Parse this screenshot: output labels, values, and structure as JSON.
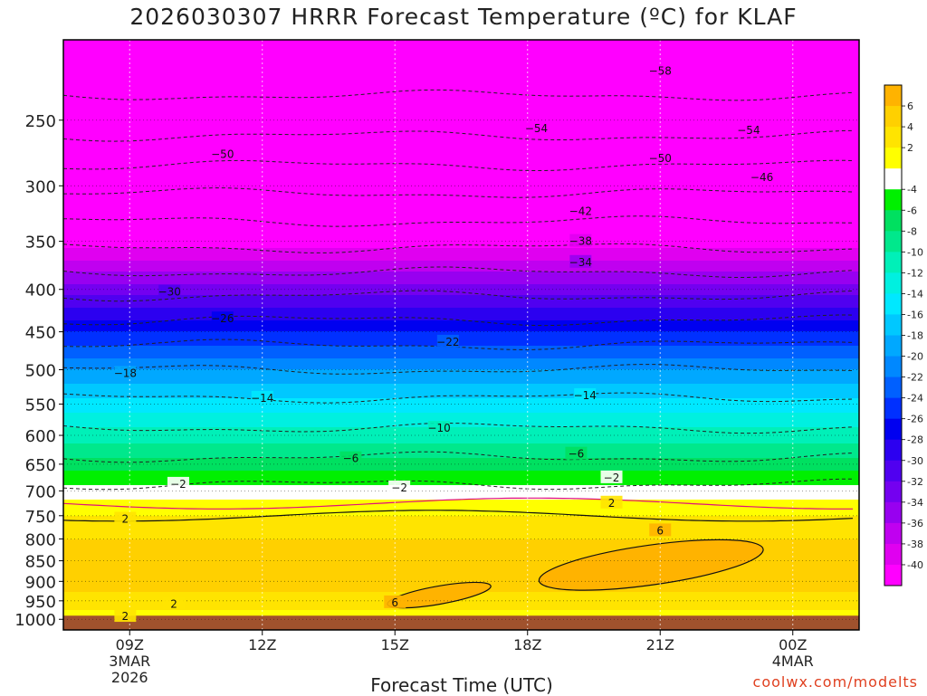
{
  "title": "2026030307 HRRR Forecast Temperature (ºC) for KLAF",
  "xlabel": "Forecast Time (UTC)",
  "credit": "coolwx.com/modelts",
  "chart_data": {
    "type": "heatmap",
    "title": "2026030307 HRRR Forecast Temperature (ºC) for KLAF",
    "xlabel": "Forecast Time (UTC)",
    "ylabel": "",
    "x_range_hours_utc": [
      7.5,
      25.5
    ],
    "y_range_hPa": [
      1030,
      200
    ],
    "y_scale": "log-pressure",
    "yticks": [
      250,
      300,
      350,
      400,
      450,
      500,
      550,
      600,
      650,
      700,
      750,
      800,
      850,
      900,
      950,
      1000
    ],
    "xticks": [
      {
        "hour": 9,
        "lines": [
          "09Z",
          "3MAR",
          "2026"
        ]
      },
      {
        "hour": 12,
        "lines": [
          "12Z"
        ]
      },
      {
        "hour": 15,
        "lines": [
          "15Z"
        ]
      },
      {
        "hour": 18,
        "lines": [
          "18Z"
        ]
      },
      {
        "hour": 21,
        "lines": [
          "21Z"
        ]
      },
      {
        "hour": 24,
        "lines": [
          "00Z",
          "4MAR"
        ]
      }
    ],
    "grid": true,
    "ground_below_hPa": 990,
    "ground_color": "#a0522d",
    "colorbar": {
      "placement": "right",
      "labels": [
        6,
        4,
        2,
        -4,
        -6,
        -8,
        -10,
        -12,
        -14,
        -16,
        -18,
        -20,
        -22,
        -24,
        -26,
        -28,
        -30,
        -32,
        -34,
        -36,
        -38,
        -40
      ],
      "colors": [
        "#ffb300",
        "#ffd000",
        "#ffe400",
        "#ffff00",
        "#ffffff",
        "#00f000",
        "#00e060",
        "#00e88c",
        "#00f0b8",
        "#00f0e0",
        "#00e8ff",
        "#00c8ff",
        "#00a8ff",
        "#0088ff",
        "#0060ff",
        "#0030ff",
        "#0000f0",
        "#2c00f0",
        "#5000f0",
        "#7400f0",
        "#9800f0",
        "#c000f0",
        "#e000f0",
        "#ff00ff"
      ]
    },
    "temperature_profile": {
      "pressure_hPa": [
        200,
        250,
        300,
        350,
        400,
        450,
        500,
        550,
        600,
        650,
        700,
        750,
        800,
        850,
        900,
        950,
        1000
      ],
      "temp_C": [
        -62,
        -56,
        -47,
        -39,
        -31,
        -24,
        -18,
        -13,
        -9,
        -5,
        -1,
        2,
        4,
        5,
        5,
        3,
        1
      ]
    },
    "labeled_isotherms": [
      {
        "value": -58,
        "label": "−58",
        "hour": 21.0,
        "p": 218
      },
      {
        "value": -54,
        "label": "−54",
        "hour": 18.2,
        "p": 256
      },
      {
        "value": -54,
        "label": "−54",
        "hour": 23.0,
        "p": 257
      },
      {
        "value": -50,
        "label": "−50",
        "hour": 11.1,
        "p": 275
      },
      {
        "value": -50,
        "label": "−50",
        "hour": 21.0,
        "p": 278
      },
      {
        "value": -46,
        "label": "−46",
        "hour": 23.3,
        "p": 293
      },
      {
        "value": -42,
        "label": "−42",
        "hour": 19.2,
        "p": 322
      },
      {
        "value": -38,
        "label": "−38",
        "hour": 19.2,
        "p": 350
      },
      {
        "value": -34,
        "label": "−34",
        "hour": 19.2,
        "p": 371
      },
      {
        "value": -30,
        "label": "−30",
        "hour": 9.9,
        "p": 403
      },
      {
        "value": -26,
        "label": "−26",
        "hour": 11.1,
        "p": 434
      },
      {
        "value": -22,
        "label": "−22",
        "hour": 16.2,
        "p": 463
      },
      {
        "value": -18,
        "label": "−18",
        "hour": 8.9,
        "p": 505
      },
      {
        "value": -14,
        "label": "−14",
        "hour": 12.0,
        "p": 541
      },
      {
        "value": -14,
        "label": "−14",
        "hour": 19.3,
        "p": 537
      },
      {
        "value": -10,
        "label": "−10",
        "hour": 16.0,
        "p": 588
      },
      {
        "value": -6,
        "label": "−6",
        "hour": 14.0,
        "p": 640
      },
      {
        "value": -6,
        "label": "−6",
        "hour": 19.1,
        "p": 632
      },
      {
        "value": -2,
        "label": "−2",
        "hour": 10.1,
        "p": 687
      },
      {
        "value": -2,
        "label": "−2",
        "hour": 15.1,
        "p": 694
      },
      {
        "value": -2,
        "label": "−2",
        "hour": 19.9,
        "p": 675
      },
      {
        "value": 2,
        "label": "2",
        "hour": 8.9,
        "p": 757
      },
      {
        "value": 2,
        "label": "2",
        "hour": 19.9,
        "p": 724
      },
      {
        "value": 2,
        "label": "2",
        "hour": 10.0,
        "p": 959
      },
      {
        "value": 2,
        "label": "2",
        "hour": 8.9,
        "p": 992
      },
      {
        "value": 6,
        "label": "6",
        "hour": 21.0,
        "p": 782
      },
      {
        "value": 6,
        "label": "6",
        "hour": 15.0,
        "p": 955
      }
    ]
  }
}
